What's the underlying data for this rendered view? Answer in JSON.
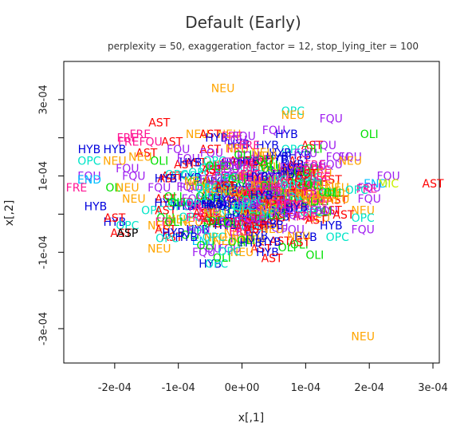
{
  "chart_data": {
    "type": "scatter",
    "title": "Default (Early)",
    "subtitle": "perplexity = 50, exaggeration_factor = 12, stop_lying_iter = 100",
    "xlabel": "x[,1]",
    "ylabel": "x[,2]",
    "xlim": [
      -0.00028,
      0.00031
    ],
    "ylim": [
      -0.00039,
      0.0004
    ],
    "xticks": [
      -0.0002,
      -0.0001,
      0,
      0.0001,
      0.0002,
      0.0003
    ],
    "xtick_labels": [
      "-2e-04",
      "-1e-04",
      "0e+00",
      "1e-04",
      "2e-04",
      "3e-04"
    ],
    "yticks": [
      -0.0003,
      -0.0001,
      0.0001,
      0.0003
    ],
    "ytick_labels": [
      "-3e-04",
      "-1e-04",
      "1e-04",
      "3e-04"
    ],
    "grid": false,
    "legend": "none",
    "marker": "text label per point",
    "colors": {
      "AST": "#ff0000",
      "NEU": "#ffa500",
      "OPC": "#00e5c8",
      "FQU": "#a020f0",
      "OLI": "#00e000",
      "HYB": "#0000dd",
      "FRE": "#ff1493",
      "END": "#00bfff",
      "MIC": "#c8f000"
    },
    "points": [
      {
        "label": "NEU",
        "x": -3e-05,
        "y": 0.00033
      },
      {
        "label": "OPC",
        "x": 8e-05,
        "y": 0.00027
      },
      {
        "label": "NEU",
        "x": 8e-05,
        "y": 0.00026
      },
      {
        "label": "FQU",
        "x": 0.00014,
        "y": 0.00025
      },
      {
        "label": "AST",
        "x": -0.00013,
        "y": 0.00024
      },
      {
        "label": "FQU",
        "x": 5e-05,
        "y": 0.00022
      },
      {
        "label": "FRE",
        "x": -0.00016,
        "y": 0.00021
      },
      {
        "label": "FRE",
        "x": -0.00018,
        "y": 0.0002
      },
      {
        "label": "NEU",
        "x": -7e-05,
        "y": 0.00021
      },
      {
        "label": "NEU",
        "x": -2e-05,
        "y": 0.00021
      },
      {
        "label": "AST",
        "x": -5e-05,
        "y": 0.00021
      },
      {
        "label": "HYB",
        "x": 7e-05,
        "y": 0.00021
      },
      {
        "label": "OLI",
        "x": 0.0002,
        "y": 0.00021
      },
      {
        "label": "HYB",
        "x": -4e-05,
        "y": 0.0002
      },
      {
        "label": "FREFQU",
        "x": -0.00016,
        "y": 0.00019
      },
      {
        "label": "AST",
        "x": -0.00011,
        "y": 0.00019
      },
      {
        "label": "HYB",
        "x": 4e-05,
        "y": 0.00018
      },
      {
        "label": "FQU",
        "x": 0.00013,
        "y": 0.00018
      },
      {
        "label": "AST",
        "x": 0.00011,
        "y": 0.00018
      },
      {
        "label": "HYB",
        "x": -0.00024,
        "y": 0.00017
      },
      {
        "label": "HYB",
        "x": -0.0002,
        "y": 0.00017
      },
      {
        "label": "FQU",
        "x": -0.0001,
        "y": 0.00017
      },
      {
        "label": "AST",
        "x": -5e-05,
        "y": 0.00017
      },
      {
        "label": "OPC",
        "x": 8e-05,
        "y": 0.00017
      },
      {
        "label": "AST",
        "x": -0.00015,
        "y": 0.00016
      },
      {
        "label": "HYB",
        "x": 6e-05,
        "y": 0.00016
      },
      {
        "label": "FQU",
        "x": 0.00015,
        "y": 0.00015
      },
      {
        "label": "FQU",
        "x": 0.00017,
        "y": 0.00015
      },
      {
        "label": "NEU",
        "x": -0.00016,
        "y": 0.00015
      },
      {
        "label": "OPC",
        "x": -0.00024,
        "y": 0.00014
      },
      {
        "label": "NEU",
        "x": -0.0002,
        "y": 0.00014
      },
      {
        "label": "OLI",
        "x": -0.00013,
        "y": 0.00014
      },
      {
        "label": "FQU",
        "x": 1e-05,
        "y": 0.00014
      },
      {
        "label": "AST",
        "x": 9e-05,
        "y": 0.00014
      },
      {
        "label": "NEU",
        "x": 0.00017,
        "y": 0.00014
      },
      {
        "label": "FQU",
        "x": -0.00018,
        "y": 0.00012
      },
      {
        "label": "AST",
        "x": -9e-05,
        "y": 0.00013
      },
      {
        "label": "HYB",
        "x": 8e-05,
        "y": 0.00013
      },
      {
        "label": "FQU",
        "x": 0.00014,
        "y": 0.00013
      },
      {
        "label": "FQU",
        "x": -0.00024,
        "y": 0.0001
      },
      {
        "label": "END",
        "x": -0.00024,
        "y": 9e-05
      },
      {
        "label": "FQU",
        "x": -0.00017,
        "y": 0.0001
      },
      {
        "label": "AST",
        "x": -0.00011,
        "y": 0.0001
      },
      {
        "label": "FQU",
        "x": -1e-05,
        "y": 0.0001
      },
      {
        "label": "HYB",
        "x": 0.0001,
        "y": 0.0001
      },
      {
        "label": "AST",
        "x": 0.00014,
        "y": 9e-05
      },
      {
        "label": "FQU",
        "x": 0.00023,
        "y": 0.0001
      },
      {
        "label": "END",
        "x": 0.00021,
        "y": 8e-05
      },
      {
        "label": "MIC",
        "x": 0.00023,
        "y": 8e-05
      },
      {
        "label": "AST",
        "x": 0.0003,
        "y": 8e-05
      },
      {
        "label": "FRE",
        "x": -0.00026,
        "y": 7e-05
      },
      {
        "label": "OLI",
        "x": -0.0002,
        "y": 7e-05
      },
      {
        "label": "NEU",
        "x": -0.00018,
        "y": 7e-05
      },
      {
        "label": "FQU",
        "x": -0.00013,
        "y": 7e-05
      },
      {
        "label": "FQU",
        "x": -8e-05,
        "y": 7e-05
      },
      {
        "label": "HYB",
        "x": 4e-05,
        "y": 7e-05
      },
      {
        "label": "HYB",
        "x": 0.0001,
        "y": 6e-05
      },
      {
        "label": "NEU",
        "x": 0.00015,
        "y": 7e-05
      },
      {
        "label": "FQU",
        "x": 0.0002,
        "y": 7e-05
      },
      {
        "label": "NEU",
        "x": -0.00017,
        "y": 4e-05
      },
      {
        "label": "AST",
        "x": -0.00012,
        "y": 4e-05
      },
      {
        "label": "FQU",
        "x": 3e-05,
        "y": 4e-05
      },
      {
        "label": "FQU",
        "x": 0.00011,
        "y": 4e-05
      },
      {
        "label": "FQU",
        "x": 0.0002,
        "y": 4e-05
      },
      {
        "label": "HYB",
        "x": -0.00023,
        "y": 2e-05
      },
      {
        "label": "HYB",
        "x": -0.00012,
        "y": 3e-05
      },
      {
        "label": "OPC",
        "x": -0.0001,
        "y": 2e-05
      },
      {
        "label": "AST",
        "x": -6e-05,
        "y": 2e-05
      },
      {
        "label": "NEU",
        "x": 7e-05,
        "y": 2e-05
      },
      {
        "label": "OPC",
        "x": -0.00014,
        "y": 1e-05
      },
      {
        "label": "AST",
        "x": -0.00012,
        "y": 1e-05
      },
      {
        "label": "FQU",
        "x": 7e-05,
        "y": 1e-05
      },
      {
        "label": "AST",
        "x": 0.00014,
        "y": 1e-05
      },
      {
        "label": "NEU",
        "x": 0.00019,
        "y": 1e-05
      },
      {
        "label": "OLI",
        "x": -0.00012,
        "y": -1e-05
      },
      {
        "label": "HYB",
        "x": -1e-05,
        "y": -1e-05
      },
      {
        "label": "NEU",
        "x": 0.00012,
        "y": -1e-05
      },
      {
        "label": "OPC",
        "x": 0.00019,
        "y": -1e-05
      },
      {
        "label": "HYB",
        "x": -0.0002,
        "y": -2e-05
      },
      {
        "label": "AST",
        "x": -0.0002,
        "y": -1e-05
      },
      {
        "label": "FRE",
        "x": -0.00012,
        "y": -2e-05
      },
      {
        "label": "NEU",
        "x": -8e-05,
        "y": -2e-05
      },
      {
        "label": "FQU",
        "x": -2e-05,
        "y": -2e-05
      },
      {
        "label": "AST",
        "x": 2e-05,
        "y": -2e-05
      },
      {
        "label": "HYB",
        "x": 0.00014,
        "y": -3e-05
      },
      {
        "label": "FQU",
        "x": 0.00019,
        "y": -4e-05
      },
      {
        "label": "OPC",
        "x": -0.00018,
        "y": -3e-05
      },
      {
        "label": "NEU",
        "x": -0.00013,
        "y": -3e-05
      },
      {
        "label": "AST",
        "x": -0.00019,
        "y": -5e-05
      },
      {
        "label": "ASP",
        "x": -0.00018,
        "y": -5e-05
      },
      {
        "label": "AST",
        "x": -0.00012,
        "y": -4e-05
      },
      {
        "label": "HYB",
        "x": -7e-05,
        "y": -4e-05
      },
      {
        "label": "FQU",
        "x": 1e-05,
        "y": -4e-05
      },
      {
        "label": "FQU",
        "x": 8e-05,
        "y": -4e-05
      },
      {
        "label": "OPC",
        "x": 0.00015,
        "y": -6e-05
      },
      {
        "label": "AST",
        "x": -0.00011,
        "y": -6e-05
      },
      {
        "label": "END",
        "x": -6e-05,
        "y": -7e-05
      },
      {
        "label": "HYB",
        "x": 0.0001,
        "y": -6e-05
      },
      {
        "label": "AST",
        "x": 6e-05,
        "y": -7e-05
      },
      {
        "label": "OLI",
        "x": 9e-05,
        "y": -8e-05
      },
      {
        "label": "NEU",
        "x": -0.00013,
        "y": -9e-05
      },
      {
        "label": "FQU",
        "x": -5e-05,
        "y": -9e-05
      },
      {
        "label": "FQU",
        "x": -2e-05,
        "y": -9e-05
      },
      {
        "label": "AST",
        "x": 3e-05,
        "y": -9e-05
      },
      {
        "label": "HYB",
        "x": 4e-05,
        "y": -0.0001
      },
      {
        "label": "FQU",
        "x": -6e-05,
        "y": -0.0001
      },
      {
        "label": "NEU",
        "x": 0.0,
        "y": -0.0001
      },
      {
        "label": "HYB",
        "x": -5e-05,
        "y": -0.00013
      },
      {
        "label": "OPC",
        "x": -4e-05,
        "y": -0.00013
      },
      {
        "label": "NEU",
        "x": 0.00019,
        "y": -0.00032
      }
    ]
  }
}
